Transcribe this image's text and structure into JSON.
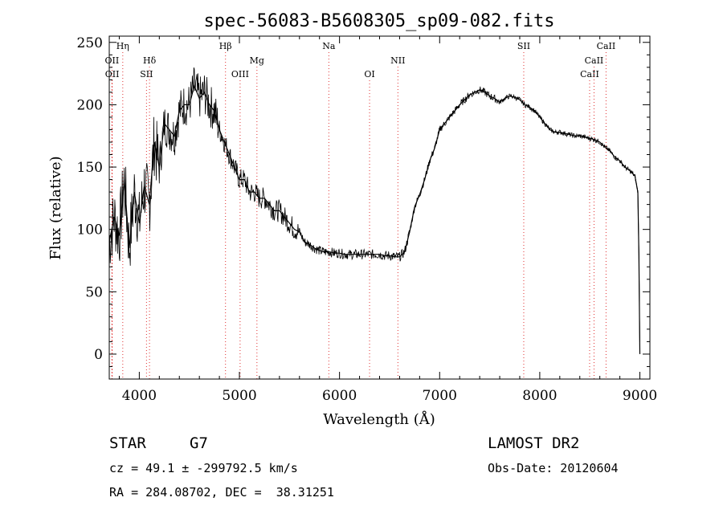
{
  "chart_data": {
    "type": "line",
    "title": "spec-56083-B5608305_sp09-082.fits",
    "xlabel": "Wavelength (Å)",
    "ylabel": "Flux (relative)",
    "xlim": [
      3700,
      9100
    ],
    "ylim": [
      -20,
      255
    ],
    "x_ticks": [
      4000,
      5000,
      6000,
      7000,
      8000,
      9000
    ],
    "y_ticks": [
      0,
      50,
      100,
      150,
      200,
      250
    ],
    "spectral_lines": [
      {
        "label": "Hη",
        "wavelength": 3835,
        "row": 1
      },
      {
        "label": "OII",
        "wavelength": 3727,
        "row": 2
      },
      {
        "label": "OII",
        "wavelength": 3729,
        "row": 3
      },
      {
        "label": "Hδ",
        "wavelength": 4102,
        "row": 2
      },
      {
        "label": "SII",
        "wavelength": 4072,
        "row": 3
      },
      {
        "label": "Hβ",
        "wavelength": 4861,
        "row": 1
      },
      {
        "label": "OIII",
        "wavelength": 5007,
        "row": 3
      },
      {
        "label": "Mg",
        "wavelength": 5175,
        "row": 2
      },
      {
        "label": "Na",
        "wavelength": 5893,
        "row": 1
      },
      {
        "label": "OI",
        "wavelength": 6300,
        "row": 3
      },
      {
        "label": "NII",
        "wavelength": 6583,
        "row": 2
      },
      {
        "label": "SII",
        "wavelength": 7840,
        "row": 1
      },
      {
        "label": "CaII",
        "wavelength": 8498,
        "row": 3
      },
      {
        "label": "CaII",
        "wavelength": 8542,
        "row": 2
      },
      {
        "label": "CaII",
        "wavelength": 8662,
        "row": 1
      }
    ],
    "series": [
      {
        "x": [
          3700,
          3750,
          3800,
          3850,
          3900,
          3950,
          4000,
          4050,
          4100,
          4150,
          4200,
          4250,
          4300,
          4350,
          4400,
          4450,
          4500,
          4550,
          4600,
          4650,
          4700,
          4750,
          4800,
          4850,
          4900,
          4950,
          5000,
          5050,
          5100,
          5150,
          5200,
          5250,
          5300,
          5350,
          5400,
          5450,
          5500,
          5550,
          5600,
          5650,
          5700,
          5750,
          5800,
          5850,
          5900,
          5950,
          6000,
          6050,
          6100,
          6150,
          6200,
          6250,
          6300,
          6350,
          6400,
          6450,
          6500,
          6550,
          6600,
          6650,
          6700,
          6750,
          6800,
          6850,
          6900,
          6950,
          7000,
          7050,
          7100,
          7150,
          7200,
          7250,
          7300,
          7350,
          7400,
          7450,
          7500,
          7550,
          7600,
          7650,
          7700,
          7750,
          7800,
          7850,
          7900,
          7950,
          8000,
          8050,
          8100,
          8150,
          8200,
          8250,
          8300,
          8350,
          8400,
          8450,
          8500,
          8550,
          8600,
          8650,
          8700,
          8750,
          8800,
          8850,
          8900,
          8950,
          8980,
          8990,
          9000
        ],
        "y": [
          90,
          110,
          95,
          140,
          85,
          130,
          105,
          135,
          120,
          170,
          150,
          185,
          180,
          175,
          195,
          200,
          200,
          215,
          205,
          210,
          200,
          195,
          180,
          170,
          160,
          150,
          140,
          140,
          130,
          130,
          125,
          125,
          120,
          115,
          115,
          110,
          105,
          100,
          98,
          90,
          88,
          85,
          83,
          82,
          82,
          81,
          81,
          80,
          80,
          80,
          80,
          80,
          80,
          80,
          80,
          79,
          79,
          78,
          78,
          82,
          98,
          118,
          128,
          140,
          155,
          165,
          180,
          185,
          190,
          195,
          200,
          204,
          208,
          210,
          212,
          210,
          207,
          205,
          202,
          205,
          207,
          206,
          204,
          200,
          198,
          195,
          190,
          185,
          180,
          178,
          178,
          177,
          176,
          175,
          175,
          174,
          173,
          172,
          170,
          166,
          163,
          158,
          155,
          150,
          147,
          143,
          130,
          80,
          0
        ]
      }
    ]
  },
  "info": {
    "class": "STAR",
    "subclass": "G7",
    "cz_text": "cz = 49.1 ± -299792.5 km/s",
    "coord_text": "RA = 284.08702, DEC =  38.31251",
    "survey": "LAMOST DR2",
    "obs_date": "Obs-Date: 20120604"
  }
}
